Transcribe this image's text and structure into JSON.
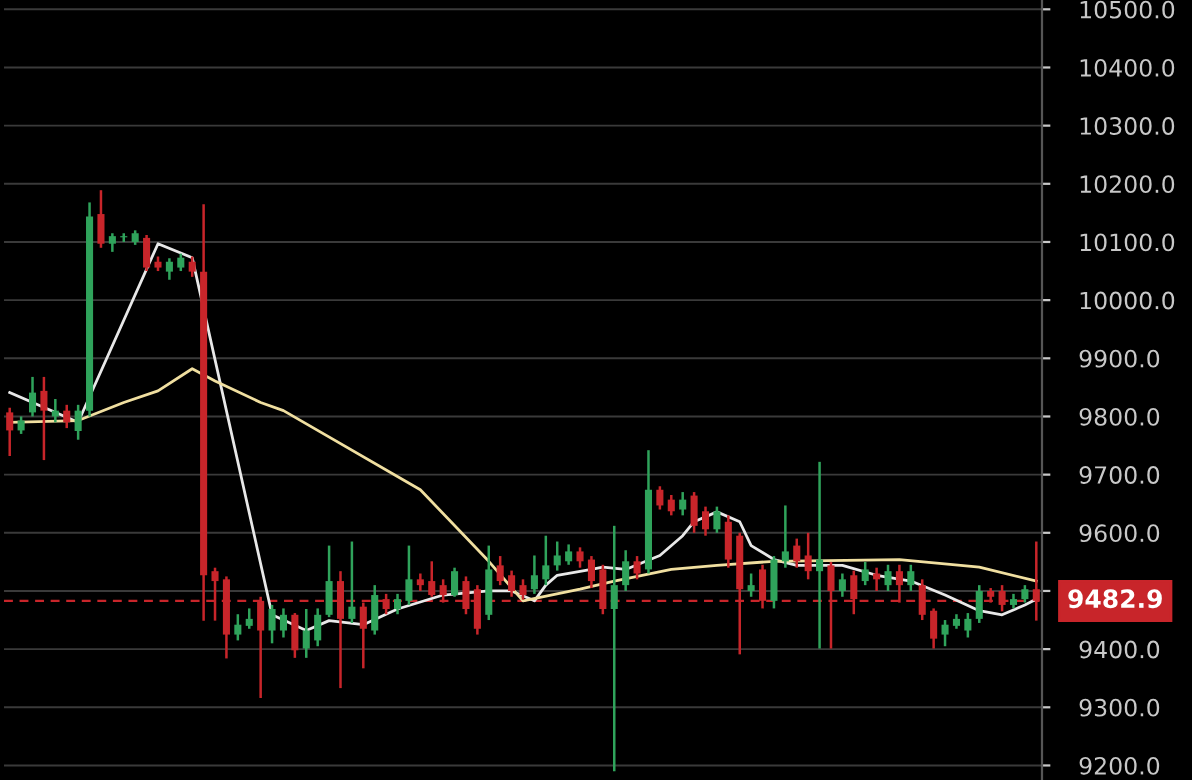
{
  "chart_data": {
    "type": "candlestick",
    "categories": [
      null,
      null,
      null,
      null,
      null,
      null,
      null,
      null,
      null,
      null,
      null,
      null,
      null,
      null,
      null,
      null,
      null,
      null,
      null,
      null,
      null,
      null,
      null,
      null,
      null,
      null,
      null,
      null,
      null,
      null,
      null,
      null,
      null,
      null,
      null,
      null,
      null,
      null,
      null,
      null,
      null,
      null,
      null,
      null,
      null,
      null,
      null,
      null,
      null,
      null,
      null,
      null,
      null,
      null,
      null,
      null,
      null,
      null,
      null,
      null,
      null,
      null,
      null,
      null,
      null,
      null,
      null,
      null,
      null,
      null,
      null,
      null,
      null,
      null,
      null,
      null,
      null,
      null,
      null,
      null,
      null,
      null,
      null,
      null,
      null,
      null,
      null,
      null,
      null,
      null,
      null
    ],
    "ohlc": [
      [
        9807,
        9815,
        9732,
        9776
      ],
      [
        9776,
        9800,
        9770,
        9793
      ],
      [
        9807,
        9868,
        9800,
        9841
      ],
      [
        9844,
        9868,
        9725,
        9810
      ],
      [
        9800,
        9830,
        9790,
        9810
      ],
      [
        9810,
        9820,
        9780,
        9790
      ],
      [
        9775,
        9820,
        9760,
        9810
      ],
      [
        9810,
        10168,
        9800,
        10144
      ],
      [
        10148,
        10189,
        10090,
        10097
      ],
      [
        10097,
        10115,
        10083,
        10110
      ],
      [
        10108,
        10115,
        10100,
        10110
      ],
      [
        10100,
        10120,
        10095,
        10115
      ],
      [
        10107,
        10112,
        10050,
        10056
      ],
      [
        10066,
        10075,
        10050,
        10056
      ],
      [
        10049,
        10072,
        10035,
        10066
      ],
      [
        10056,
        10080,
        10050,
        10073
      ],
      [
        10066,
        10075,
        10040,
        10049
      ],
      [
        10049,
        10165,
        9449,
        9527
      ],
      [
        9534,
        9540,
        9449,
        9517
      ],
      [
        9520,
        9525,
        9384,
        9425
      ],
      [
        9425,
        9460,
        9415,
        9442
      ],
      [
        9440,
        9470,
        9435,
        9452
      ],
      [
        9483,
        9490,
        9316,
        9432
      ],
      [
        9432,
        9476,
        9410,
        9469
      ],
      [
        9432,
        9470,
        9420,
        9459
      ],
      [
        9459,
        9462,
        9385,
        9398
      ],
      [
        9401,
        9469,
        9385,
        9432
      ],
      [
        9415,
        9470,
        9405,
        9459
      ],
      [
        9459,
        9578,
        9455,
        9517
      ],
      [
        9517,
        9534,
        9333,
        9452
      ],
      [
        9452,
        9585,
        9445,
        9473
      ],
      [
        9473,
        9480,
        9367,
        9435
      ],
      [
        9432,
        9510,
        9425,
        9493
      ],
      [
        9486,
        9495,
        9460,
        9469
      ],
      [
        9469,
        9495,
        9460,
        9486
      ],
      [
        9483,
        9578,
        9476,
        9520
      ],
      [
        9520,
        9530,
        9500,
        9510
      ],
      [
        9517,
        9551,
        9490,
        9493
      ],
      [
        9510,
        9520,
        9480,
        9493
      ],
      [
        9493,
        9540,
        9490,
        9534
      ],
      [
        9517,
        9525,
        9460,
        9469
      ],
      [
        9503,
        9510,
        9425,
        9435
      ],
      [
        9459,
        9578,
        9450,
        9537
      ],
      [
        9544,
        9560,
        9510,
        9517
      ],
      [
        9527,
        9535,
        9490,
        9500
      ],
      [
        9510,
        9520,
        9485,
        9493
      ],
      [
        9503,
        9561,
        9495,
        9527
      ],
      [
        9520,
        9595,
        9510,
        9544
      ],
      [
        9544,
        9585,
        9535,
        9561
      ],
      [
        9551,
        9580,
        9545,
        9568
      ],
      [
        9568,
        9575,
        9540,
        9551
      ],
      [
        9554,
        9560,
        9505,
        9517
      ],
      [
        9537,
        9545,
        9460,
        9469
      ],
      [
        9469,
        9612,
        9190,
        9510
      ],
      [
        9510,
        9570,
        9500,
        9551
      ],
      [
        9551,
        9560,
        9520,
        9530
      ],
      [
        9537,
        9742,
        9530,
        9674
      ],
      [
        9674,
        9680,
        9640,
        9647
      ],
      [
        9657,
        9665,
        9630,
        9637
      ],
      [
        9640,
        9670,
        9630,
        9657
      ],
      [
        9664,
        9670,
        9600,
        9612
      ],
      [
        9637,
        9645,
        9595,
        9606
      ],
      [
        9606,
        9645,
        9600,
        9637
      ],
      [
        9619,
        9630,
        9540,
        9554
      ],
      [
        9595,
        9600,
        9391,
        9503
      ],
      [
        9500,
        9530,
        9490,
        9510
      ],
      [
        9537,
        9545,
        9470,
        9483
      ],
      [
        9483,
        9560,
        9470,
        9554
      ],
      [
        9551,
        9647,
        9540,
        9568
      ],
      [
        9578,
        9590,
        9540,
        9551
      ],
      [
        9561,
        9600,
        9520,
        9534
      ],
      [
        9534,
        9722,
        9401,
        9554
      ],
      [
        9544,
        9550,
        9401,
        9500
      ],
      [
        9500,
        9530,
        9490,
        9520
      ],
      [
        9527,
        9535,
        9460,
        9486
      ],
      [
        9517,
        9550,
        9510,
        9537
      ],
      [
        9530,
        9540,
        9500,
        9520
      ],
      [
        9510,
        9545,
        9500,
        9534
      ],
      [
        9534,
        9545,
        9480,
        9510
      ],
      [
        9510,
        9545,
        9500,
        9534
      ],
      [
        9510,
        9520,
        9450,
        9459
      ],
      [
        9466,
        9470,
        9401,
        9418
      ],
      [
        9425,
        9450,
        9405,
        9442
      ],
      [
        9440,
        9460,
        9435,
        9452
      ],
      [
        9432,
        9462,
        9420,
        9452
      ],
      [
        9452,
        9510,
        9445,
        9500
      ],
      [
        9500,
        9505,
        9480,
        9490
      ],
      [
        9500,
        9510,
        9465,
        9476
      ],
      [
        9476,
        9495,
        9470,
        9486
      ],
      [
        9486,
        9510,
        9480,
        9503
      ],
      [
        9503,
        9585,
        9449,
        9483
      ]
    ],
    "colors": [
      "#c8252a",
      "#2fa35b",
      "#2fa35b",
      "#c8252a",
      "#2fa35b",
      "#c8252a",
      "#2fa35b",
      "#2fa35b",
      "#c8252a",
      "#2fa35b",
      "#2fa35b",
      "#2fa35b",
      "#c8252a",
      "#c8252a",
      "#2fa35b",
      "#2fa35b",
      "#c8252a",
      "#c8252a",
      "#c8252a",
      "#c8252a",
      "#2fa35b",
      "#2fa35b",
      "#c8252a",
      "#2fa35b",
      "#2fa35b",
      "#c8252a",
      "#2fa35b",
      "#2fa35b",
      "#2fa35b",
      "#c8252a",
      "#2fa35b",
      "#c8252a",
      "#2fa35b",
      "#c8252a",
      "#2fa35b",
      "#2fa35b",
      "#c8252a",
      "#c8252a",
      "#c8252a",
      "#2fa35b",
      "#c8252a",
      "#c8252a",
      "#2fa35b",
      "#c8252a",
      "#c8252a",
      "#c8252a",
      "#2fa35b",
      "#2fa35b",
      "#2fa35b",
      "#2fa35b",
      "#c8252a",
      "#c8252a",
      "#c8252a",
      "#2fa35b",
      "#2fa35b",
      "#c8252a",
      "#2fa35b",
      "#c8252a",
      "#c8252a",
      "#2fa35b",
      "#c8252a",
      "#c8252a",
      "#2fa35b",
      "#c8252a",
      "#c8252a",
      "#2fa35b",
      "#c8252a",
      "#2fa35b",
      "#2fa35b",
      "#c8252a",
      "#c8252a",
      "#2fa35b",
      "#c8252a",
      "#2fa35b",
      "#c8252a",
      "#2fa35b",
      "#c8252a",
      "#2fa35b",
      "#c8252a",
      "#2fa35b",
      "#c8252a",
      "#c8252a",
      "#2fa35b",
      "#2fa35b",
      "#2fa35b",
      "#2fa35b",
      "#c8252a",
      "#c8252a",
      "#2fa35b",
      "#2fa35b",
      "#c8252a"
    ],
    "series": [
      {
        "type": "line",
        "color": "#e8e8e8",
        "values": [
          9841,
          null,
          null,
          null,
          null,
          null,
          9790,
          null,
          null,
          null,
          null,
          null,
          null,
          10097,
          null,
          null,
          10073,
          null,
          null,
          null,
          null,
          null,
          null,
          9459,
          null,
          null,
          9432,
          null,
          9449,
          null,
          null,
          9442,
          null,
          null,
          9469,
          null,
          null,
          null,
          9493,
          null,
          null,
          null,
          9500,
          null,
          9500,
          null,
          9483,
          9510,
          9527,
          null,
          null,
          9537,
          9541,
          null,
          9537,
          null,
          null,
          9561,
          null,
          9595,
          9619,
          null,
          9636,
          null,
          9619,
          9578,
          null,
          9554,
          null,
          9544,
          null,
          null,
          null,
          9544,
          null,
          null,
          9527,
          null,
          null,
          9517,
          null,
          null,
          9493,
          null,
          null,
          9466,
          null,
          9459,
          null,
          9476,
          9486
        ]
      },
      {
        "type": "line",
        "color": "#f0dfa0",
        "values": [
          9790,
          null,
          null,
          null,
          null,
          null,
          9793,
          null,
          null,
          null,
          9824,
          null,
          null,
          9844,
          null,
          null,
          9882,
          null,
          9861,
          null,
          null,
          null,
          9824,
          null,
          9810,
          null,
          null,
          null,
          null,
          null,
          null,
          null,
          null,
          null,
          null,
          null,
          9674,
          null,
          null,
          null,
          null,
          null,
          9551,
          null,
          null,
          9483,
          null,
          null,
          null,
          null,
          9503,
          null,
          null,
          9517,
          null,
          null,
          null,
          null,
          9537,
          null,
          null,
          null,
          9544,
          null,
          null,
          null,
          null,
          9551,
          null,
          null,
          null,
          null,
          null,
          null,
          null,
          null,
          null,
          null,
          9554,
          null,
          null,
          null,
          null,
          null,
          null,
          9541,
          null,
          null,
          null,
          null,
          9517
        ]
      }
    ],
    "ylim": [
      9175,
      10516
    ],
    "yticks": [
      {
        "value": 9200,
        "label": "9200.0"
      },
      {
        "value": 9300,
        "label": "9300.0"
      },
      {
        "value": 9400,
        "label": "9400.0"
      },
      {
        "value": 9500,
        "label": null
      },
      {
        "value": 9600,
        "label": "9600.0"
      },
      {
        "value": 9700,
        "label": "9700.0"
      },
      {
        "value": 9800,
        "label": "9800.0"
      },
      {
        "value": 9900,
        "label": "9900.0"
      },
      {
        "value": 10000,
        "label": "10000.0"
      },
      {
        "value": 10100,
        "label": "10100.0"
      },
      {
        "value": 10200,
        "label": "10200.0"
      },
      {
        "value": 10300,
        "label": "10300.0"
      },
      {
        "value": 10400,
        "label": "10400.0"
      },
      {
        "value": 10500,
        "label": "10500.0"
      }
    ],
    "ref_lines": [
      {
        "axis": "y",
        "value": 9482.9,
        "label": "9482.9",
        "color": "#c8252a",
        "line_style": "dashed"
      }
    ],
    "grid": "y",
    "tick_labels": "y"
  }
}
